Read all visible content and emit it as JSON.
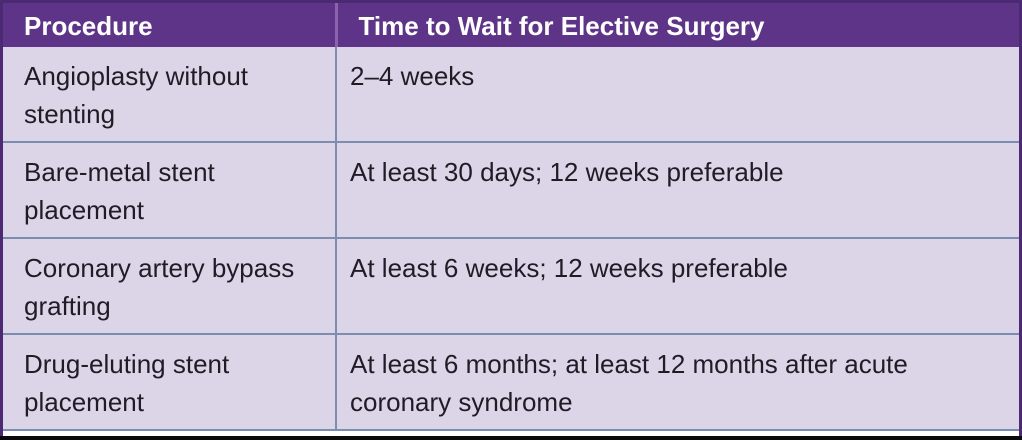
{
  "table": {
    "title_semantic": "time-to-wait-for-elective-surgery-table",
    "columns": {
      "procedure": "Procedure",
      "wait": "Time to Wait for Elective Surgery"
    },
    "rows": [
      {
        "procedure": "Angioplasty without stenting",
        "wait": "2–4 weeks"
      },
      {
        "procedure": "Bare-metal stent placement",
        "wait": "At least 30 days; 12 weeks preferable"
      },
      {
        "procedure": "Coronary artery bypass grafting",
        "wait": "At least 6 weeks; 12 weeks preferable"
      },
      {
        "procedure": "Drug-eluting stent placement",
        "wait": "At least 6 months; at least 12 months after acute coronary syndrome"
      }
    ],
    "colors": {
      "header_bg": "#5e3488",
      "frame_border": "#4b2a73",
      "header_divider": "#8a63ac",
      "row_bg": "#dcd4e7",
      "grid_border": "#7b8db1",
      "header_text": "#ffffff",
      "body_text": "#201c26",
      "bottom_rule": "#0a0a0a"
    }
  }
}
